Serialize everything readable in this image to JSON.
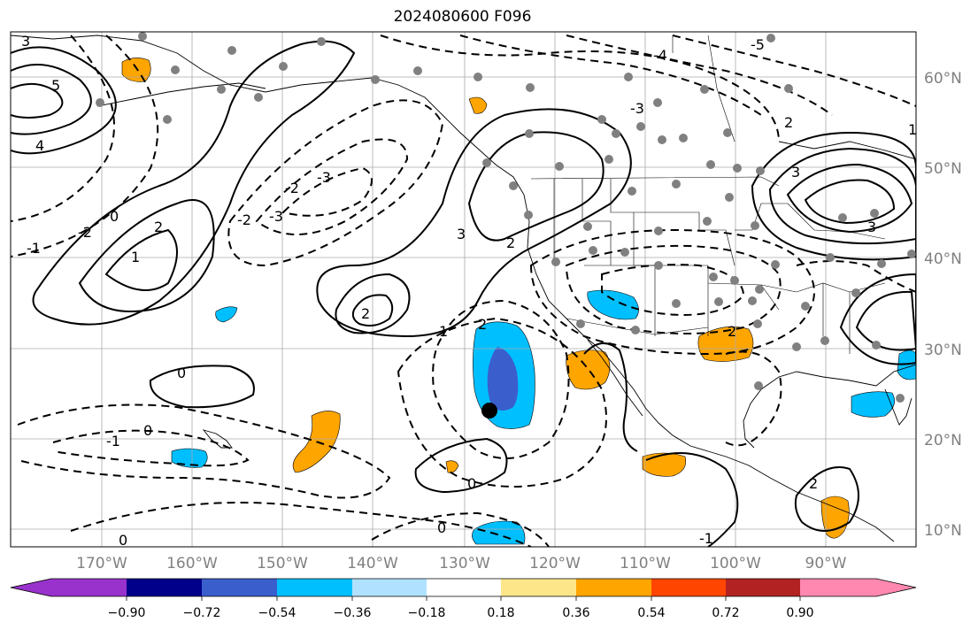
{
  "title": "2024080600 F096",
  "lon_labels": [
    "170°W",
    "160°W",
    "150°W",
    "140°W",
    "130°W",
    "120°W",
    "110°W",
    "100°W",
    "90°W"
  ],
  "lat_labels": [
    "60°N",
    "50°N",
    "40°N",
    "30°N",
    "20°N",
    "10°N"
  ],
  "colorbar": {
    "colors": [
      "#9932cc",
      "#00008b",
      "#3a5fcd",
      "#00bfff",
      "#b0e2ff",
      "#ffffff",
      "#fde68a",
      "#ffa500",
      "#ff4500",
      "#b22222",
      "#ff88b0"
    ],
    "tick_labels": [
      "−0.90",
      "−0.72",
      "−0.54",
      "−0.36",
      "−0.18",
      "0.18",
      "0.36",
      "0.54",
      "0.72",
      "0.90"
    ]
  },
  "contour_labels": [
    "3",
    "5",
    "4",
    "2",
    "1",
    "0",
    "-1",
    "-2",
    "-3",
    "-4",
    "-5",
    "2",
    "3",
    "1",
    "0",
    "2",
    "3",
    "2",
    "1",
    "2",
    "0",
    "0",
    "-1",
    "-1",
    "0",
    "0",
    "2",
    "-2",
    "-3",
    "-2",
    "3",
    "-3",
    "2"
  ],
  "markers": {
    "black_dot": "storm-center",
    "gray_dots": "station-points"
  }
}
